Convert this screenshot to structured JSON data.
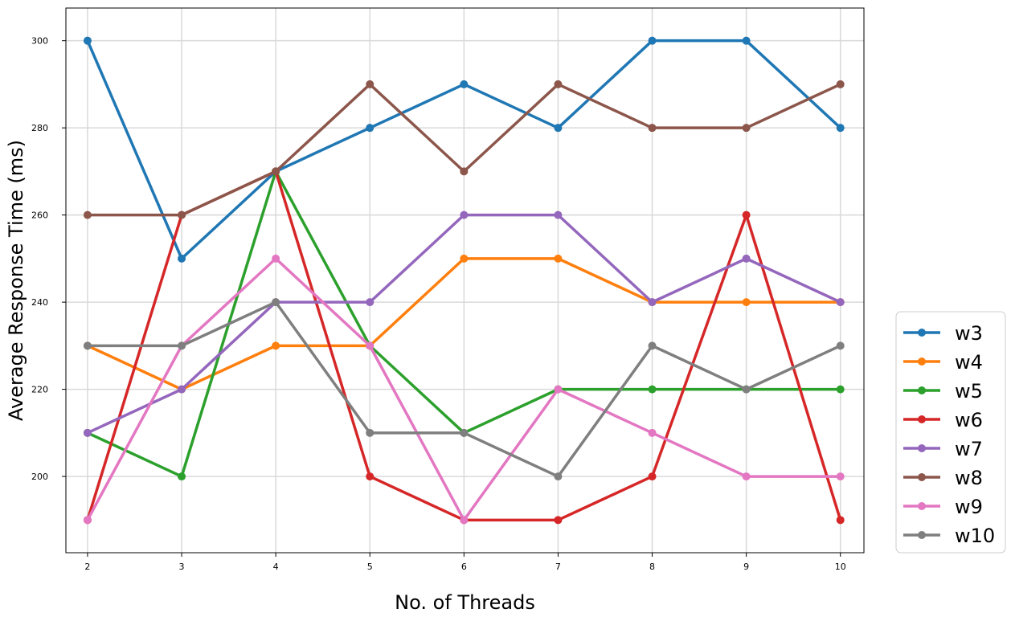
{
  "chart_data": {
    "type": "line",
    "xlabel": "No. of Threads",
    "ylabel": "Average Response Time (ms)",
    "x": [
      2,
      3,
      4,
      5,
      6,
      7,
      8,
      9,
      10
    ],
    "xticks": [
      "2",
      "3",
      "4",
      "5",
      "6",
      "7",
      "8",
      "9",
      "10"
    ],
    "yticks": [
      "200",
      "220",
      "240",
      "260",
      "280",
      "300"
    ],
    "ytick_values": [
      200,
      220,
      240,
      260,
      280,
      300
    ],
    "xlim": [
      1.77,
      10.25
    ],
    "ylim": [
      182.5,
      307.5
    ],
    "grid": true,
    "legend_position": "outside-lower-right",
    "series": [
      {
        "name": "w3",
        "color": "#1f77b4",
        "values": [
          300,
          250,
          270,
          280,
          290,
          280,
          300,
          300,
          280
        ]
      },
      {
        "name": "w4",
        "color": "#ff7f0e",
        "values": [
          230,
          220,
          230,
          230,
          250,
          250,
          240,
          240,
          240
        ]
      },
      {
        "name": "w5",
        "color": "#2ca02c",
        "values": [
          210,
          200,
          270,
          230,
          210,
          220,
          220,
          220,
          220
        ]
      },
      {
        "name": "w6",
        "color": "#d62728",
        "values": [
          190,
          260,
          270,
          200,
          190,
          190,
          200,
          260,
          190
        ]
      },
      {
        "name": "w7",
        "color": "#9467bd",
        "values": [
          210,
          220,
          240,
          240,
          260,
          260,
          240,
          250,
          240
        ]
      },
      {
        "name": "w8",
        "color": "#8c564b",
        "values": [
          260,
          260,
          270,
          290,
          270,
          290,
          280,
          280,
          290
        ]
      },
      {
        "name": "w9",
        "color": "#e377c2",
        "values": [
          190,
          230,
          250,
          230,
          190,
          220,
          210,
          200,
          200
        ]
      },
      {
        "name": "w10",
        "color": "#7f7f7f",
        "values": [
          230,
          230,
          240,
          210,
          210,
          200,
          230,
          220,
          230
        ]
      }
    ]
  }
}
